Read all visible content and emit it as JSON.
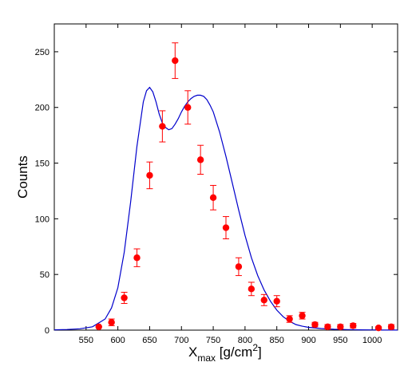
{
  "chart_data": {
    "type": "scatter",
    "title": "",
    "xlabel": {
      "main": "X",
      "sub": "max",
      "unit_open": " [g/cm",
      "sup": "2",
      "unit_close": "]"
    },
    "ylabel": "Counts",
    "xlim": [
      500,
      1040
    ],
    "ylim": [
      0,
      275
    ],
    "xticks": [
      550,
      600,
      650,
      700,
      750,
      800,
      850,
      900,
      950,
      1000
    ],
    "yticks": [
      0,
      50,
      100,
      150,
      200,
      250
    ],
    "grid": false,
    "series": [
      {
        "kind": "points_with_error",
        "color": "#ff0000",
        "points": [
          {
            "x": 570,
            "y": 3,
            "err": 0
          },
          {
            "x": 590,
            "y": 7,
            "err": 3
          },
          {
            "x": 610,
            "y": 29,
            "err": 5
          },
          {
            "x": 630,
            "y": 65,
            "err": 8
          },
          {
            "x": 650,
            "y": 139,
            "err": 12
          },
          {
            "x": 670,
            "y": 183,
            "err": 14
          },
          {
            "x": 690,
            "y": 242,
            "err": 16
          },
          {
            "x": 710,
            "y": 200,
            "err": 15
          },
          {
            "x": 730,
            "y": 153,
            "err": 13
          },
          {
            "x": 750,
            "y": 119,
            "err": 11
          },
          {
            "x": 770,
            "y": 92,
            "err": 10
          },
          {
            "x": 790,
            "y": 57,
            "err": 8
          },
          {
            "x": 810,
            "y": 37,
            "err": 6
          },
          {
            "x": 830,
            "y": 27,
            "err": 5
          },
          {
            "x": 850,
            "y": 26,
            "err": 5
          },
          {
            "x": 870,
            "y": 10,
            "err": 3
          },
          {
            "x": 890,
            "y": 13,
            "err": 3
          },
          {
            "x": 910,
            "y": 5,
            "err": 2
          },
          {
            "x": 930,
            "y": 3,
            "err": 2
          },
          {
            "x": 950,
            "y": 3,
            "err": 2
          },
          {
            "x": 970,
            "y": 4,
            "err": 2
          },
          {
            "x": 1010,
            "y": 2,
            "err": 1
          },
          {
            "x": 1030,
            "y": 3,
            "err": 2
          }
        ]
      },
      {
        "kind": "curve",
        "color": "#0000cc",
        "x": [
          500,
          520,
          540,
          560,
          580,
          590,
          600,
          610,
          620,
          630,
          640,
          645,
          650,
          655,
          660,
          665,
          670,
          675,
          680,
          685,
          690,
          695,
          700,
          705,
          710,
          715,
          720,
          725,
          730,
          735,
          740,
          745,
          750,
          760,
          770,
          780,
          790,
          800,
          810,
          820,
          830,
          840,
          850,
          860,
          870,
          880,
          890,
          900,
          920,
          940,
          960,
          980,
          1000,
          1020,
          1040
        ],
        "y": [
          0.3,
          0.6,
          1.2,
          3,
          10,
          20,
          38,
          70,
          115,
          165,
          205,
          215,
          218,
          214,
          205,
          194,
          186,
          182,
          180,
          181,
          185,
          190,
          196,
          201,
          205,
          208,
          210,
          211,
          211,
          210,
          207,
          202,
          196,
          178,
          156,
          132,
          108,
          85,
          65,
          49,
          36,
          26,
          18,
          12,
          8,
          5,
          3.5,
          2.5,
          1.4,
          0.8,
          0.5,
          0.3,
          0.2,
          0.1,
          0.1
        ]
      }
    ]
  }
}
